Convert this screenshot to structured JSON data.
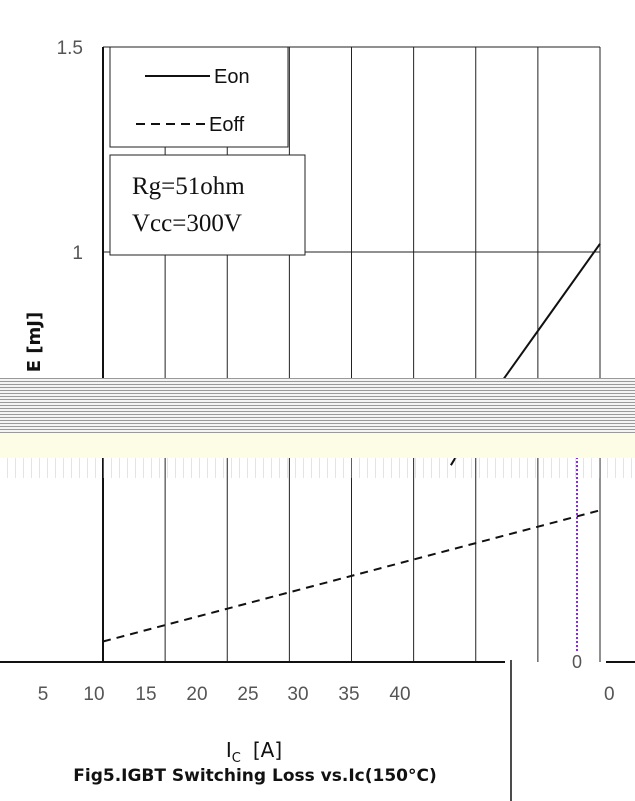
{
  "chart_data": {
    "type": "line",
    "title": "",
    "xlabel_main": "I",
    "xlabel_sub": "C",
    "xlabel_unit": "[A]",
    "ylabel": "E  [mJ]",
    "xlim": [
      0,
      40
    ],
    "ylim": [
      0,
      1.5
    ],
    "x_ticks": [
      "5",
      "10",
      "15",
      "20",
      "25",
      "30",
      "35",
      "40"
    ],
    "y_ticks": [
      "1.5",
      "1"
    ],
    "secondary_tick_y": "0",
    "secondary_tick_x": "0",
    "legend_position": "top-left",
    "series": [
      {
        "name": "Eon",
        "dash": "solid",
        "x": [
          28,
          32,
          36,
          40
        ],
        "y": [
          0.48,
          0.68,
          0.85,
          1.02
        ]
      },
      {
        "name": "Eoff",
        "dash": "dashed",
        "x": [
          0,
          5,
          10,
          15,
          20,
          25,
          30,
          35,
          40
        ],
        "y": [
          0.05,
          0.09,
          0.13,
          0.17,
          0.21,
          0.25,
          0.29,
          0.33,
          0.37
        ]
      }
    ],
    "annotation_lines": [
      "Rg=51ohm",
      "Vcc=300V"
    ]
  },
  "caption": "Fig5.IGBT Switching Loss vs.Ic(150°C)"
}
